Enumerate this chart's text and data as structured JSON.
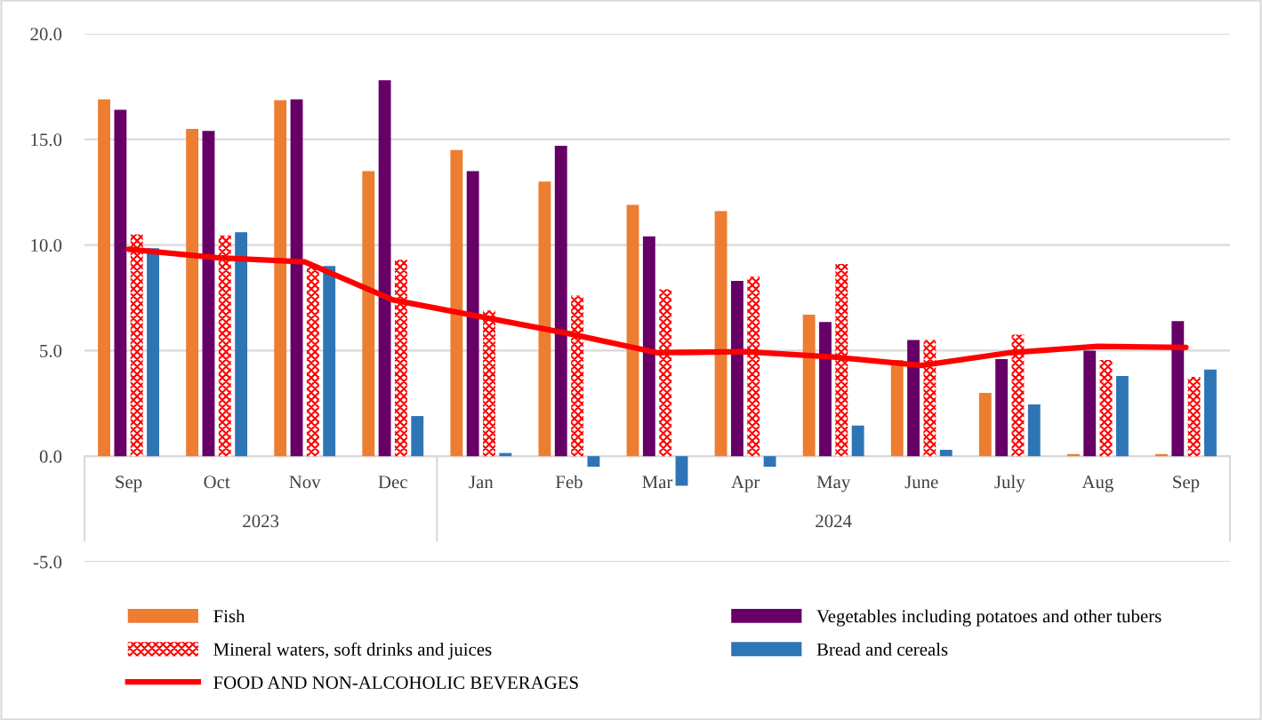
{
  "chart_data": {
    "type": "bar",
    "categories": [
      "Sep",
      "Oct",
      "Nov",
      "Dec",
      "Jan",
      "Feb",
      "Mar",
      "Apr",
      "May",
      "June",
      "July",
      "Aug",
      "Sep"
    ],
    "series": [
      {
        "name": "Fish",
        "color": "#ed7d31",
        "values": [
          16.9,
          15.5,
          16.85,
          13.5,
          14.5,
          13.0,
          11.9,
          11.6,
          6.7,
          4.55,
          3.0,
          0.1,
          0.1
        ]
      },
      {
        "name": "Vegetables including potatoes and other tubers",
        "color": "#660066",
        "values": [
          16.4,
          15.4,
          16.9,
          17.8,
          13.5,
          14.7,
          10.4,
          8.3,
          6.35,
          5.5,
          4.6,
          5.0,
          6.4
        ]
      },
      {
        "name": "Mineral waters, soft drinks and juices",
        "color": "#ff0000",
        "values": [
          10.5,
          10.45,
          9.0,
          9.3,
          6.9,
          7.6,
          7.9,
          8.5,
          9.1,
          5.5,
          5.75,
          4.55,
          3.75
        ]
      },
      {
        "name": "Bread and cereals",
        "color": "#2e75b6",
        "values": [
          9.85,
          10.6,
          9.0,
          1.9,
          0.15,
          -0.5,
          -1.4,
          -0.5,
          1.45,
          0.3,
          2.45,
          3.8,
          4.1
        ]
      },
      {
        "name": "FOOD AND NON-ALCOHOLIC BEVERAGES",
        "type": "line",
        "color": "#ff0000",
        "values": [
          9.8,
          9.4,
          9.2,
          7.4,
          6.6,
          5.8,
          4.9,
          4.95,
          4.7,
          4.3,
          4.9,
          5.2,
          5.15
        ]
      }
    ],
    "annotations": [
      "2023",
      "2024"
    ],
    "ylim": [
      -5,
      20
    ],
    "yticks": [
      {
        "value": -5,
        "label": "-5.0"
      },
      {
        "value": 0,
        "label": "0.0"
      },
      {
        "value": 5,
        "label": "5.0"
      },
      {
        "value": 10,
        "label": "10.0"
      },
      {
        "value": 15,
        "label": "15.0"
      },
      {
        "value": 20,
        "label": "20.0"
      }
    ],
    "grid": "y",
    "legend": "bottom"
  }
}
